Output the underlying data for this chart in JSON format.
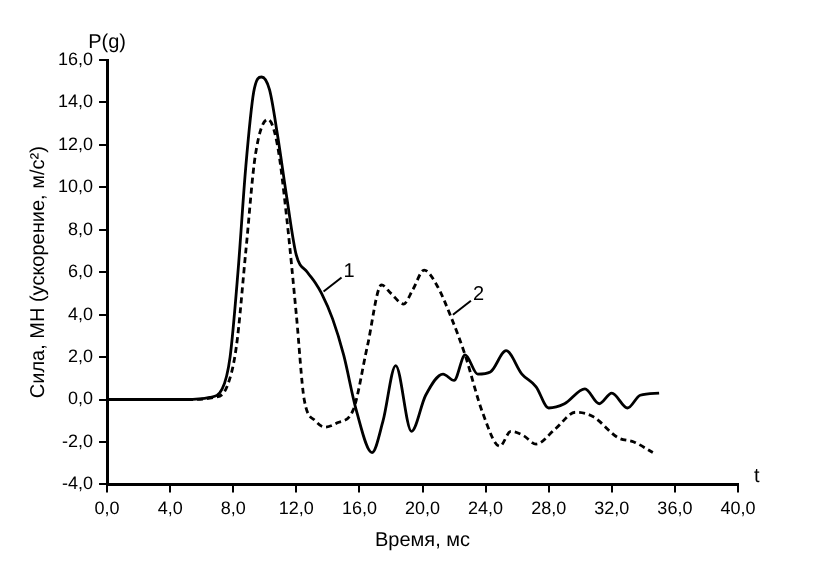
{
  "chart_data": {
    "type": "line",
    "xlabel": "Время, мс",
    "ylabel": "Сила, МН (ускорение, м/с²)",
    "xlim": [
      0,
      40
    ],
    "ylim": [
      -4,
      16
    ],
    "xticks": [
      {
        "value": 0,
        "label": "0,0"
      },
      {
        "value": 4,
        "label": "4,0"
      },
      {
        "value": 8,
        "label": "8,0"
      },
      {
        "value": 12,
        "label": "12,0"
      },
      {
        "value": 16,
        "label": "16,0"
      },
      {
        "value": 20,
        "label": "20,0"
      },
      {
        "value": 24,
        "label": "24,0"
      },
      {
        "value": 28,
        "label": "28,0"
      },
      {
        "value": 32,
        "label": "32,0"
      },
      {
        "value": 36,
        "label": "36,0"
      },
      {
        "value": 40,
        "label": "40,0"
      }
    ],
    "yticks": [
      {
        "value": -4,
        "label": "-4,0"
      },
      {
        "value": -2,
        "label": "-2,0"
      },
      {
        "value": 0,
        "label": "0,0"
      },
      {
        "value": 2,
        "label": "2,0"
      },
      {
        "value": 4,
        "label": "4,0"
      },
      {
        "value": 6,
        "label": "6,0"
      },
      {
        "value": 8,
        "label": "8,0"
      },
      {
        "value": 10,
        "label": "10,0"
      },
      {
        "value": 12,
        "label": "12,0"
      },
      {
        "value": 14,
        "label": "14,0"
      },
      {
        "value": 16,
        "label": "16,0"
      }
    ],
    "grid": false,
    "legend": false,
    "marker": "none",
    "series": [
      {
        "color": "#000000",
        "line_style": "solid",
        "x": [
          0,
          5,
          6.5,
          7.3,
          7.8,
          8.3,
          8.8,
          9.3,
          9.8,
          10.3,
          10.8,
          11.4,
          12,
          12.7,
          13.2,
          13.6,
          14.3,
          15,
          15.8,
          16.8,
          17.5,
          18.3,
          19.3,
          20.2,
          21.3,
          22,
          22.7,
          23.5,
          24.3,
          25.3,
          26.3,
          27.2,
          28,
          29,
          30.3,
          31.2,
          32,
          33,
          33.8,
          35
        ],
        "values": [
          0,
          0,
          0.1,
          0.5,
          2,
          6,
          11,
          14.5,
          15.2,
          14.6,
          12.5,
          9.5,
          6.8,
          6,
          5.5,
          5,
          3.8,
          2.1,
          -0.5,
          -2.5,
          -1,
          1.6,
          -1.5,
          0.2,
          1.2,
          0.9,
          2.1,
          1.2,
          1.3,
          2.3,
          1.2,
          0.6,
          -0.4,
          -0.2,
          0.5,
          -0.2,
          0.3,
          -0.4,
          0.2,
          0.3
        ]
      },
      {
        "color": "#000000",
        "line_style": "dashed",
        "x": [
          0,
          5,
          6.8,
          7.6,
          8.2,
          8.8,
          9.4,
          10.2,
          10.8,
          11.4,
          12,
          12.5,
          13.2,
          13.8,
          14.6,
          15.6,
          16.5,
          17.4,
          18,
          18.8,
          19.4,
          20.1,
          20.9,
          21.8,
          22.7,
          23.8,
          24.9,
          25.6,
          26.4,
          27.2,
          28.4,
          29.7,
          30.8,
          32.4,
          33.4,
          34.6
        ],
        "values": [
          0,
          0,
          0.1,
          0.6,
          2.5,
          7,
          11.5,
          13.2,
          12,
          8.5,
          4,
          0,
          -1,
          -1.3,
          -1.1,
          -0.5,
          2.5,
          5.4,
          5,
          4.5,
          5.2,
          6.1,
          5.4,
          3.9,
          2.1,
          -0.6,
          -2.2,
          -1.5,
          -1.7,
          -2.1,
          -1.4,
          -0.6,
          -0.8,
          -1.8,
          -2,
          -2.5
        ]
      }
    ],
    "annotations": [
      "P(g)",
      "t",
      {
        "text": "1",
        "x": 13.6,
        "y": 5
      },
      {
        "text": "2",
        "x": 21.8,
        "y": 3.9
      }
    ]
  }
}
